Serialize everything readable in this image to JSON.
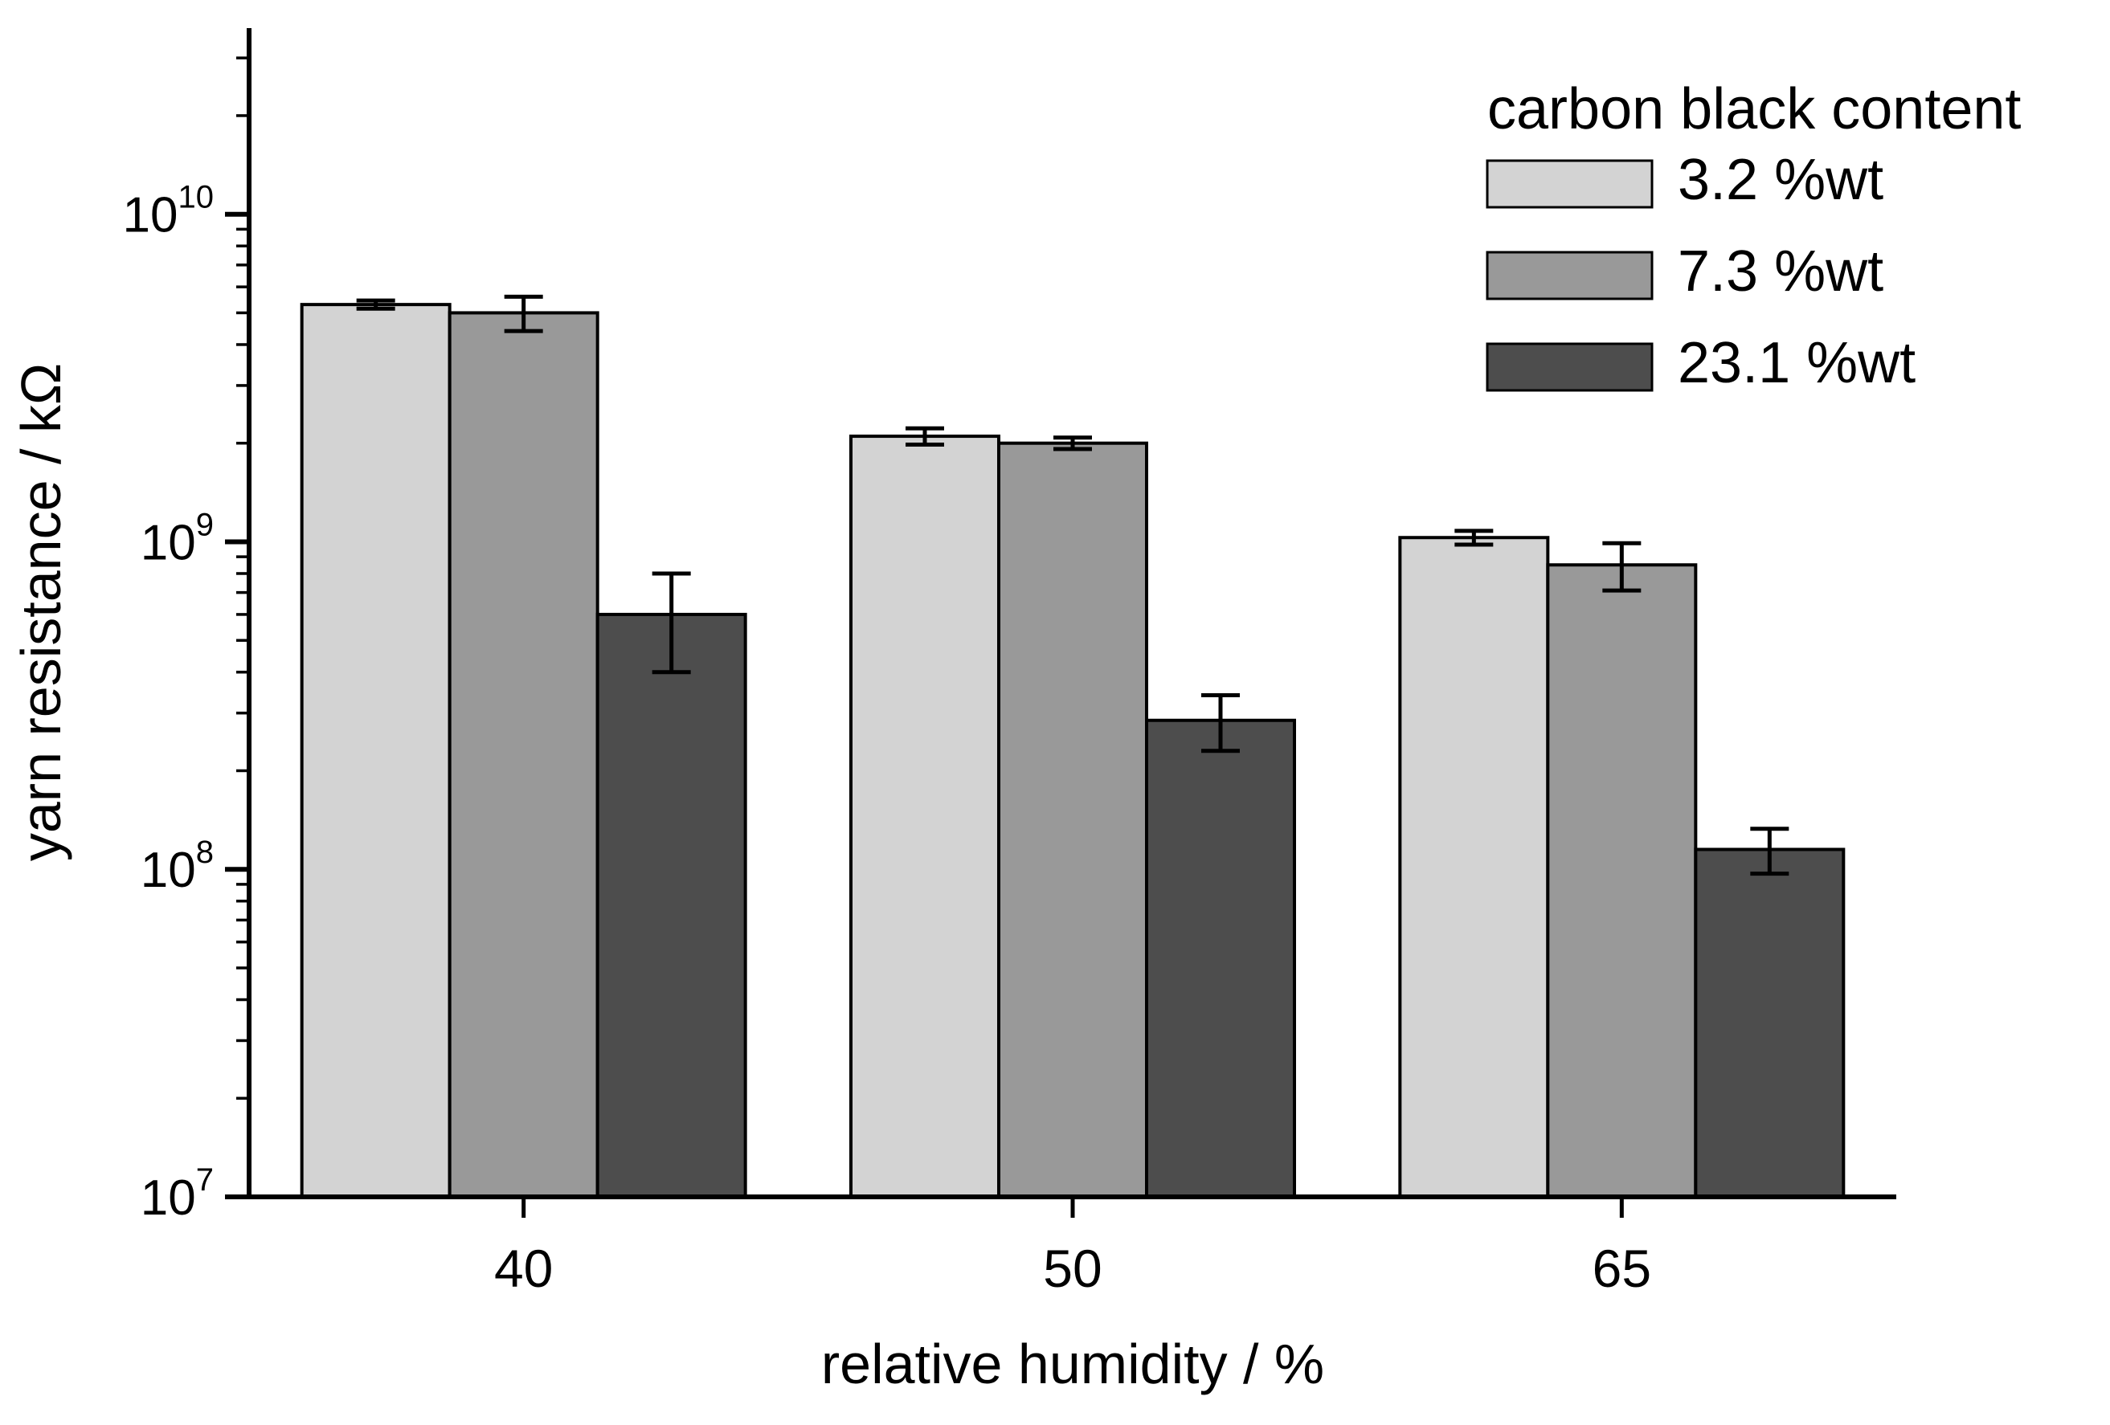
{
  "chart_data": {
    "type": "bar",
    "title": "",
    "xlabel": "relative humidity / %",
    "ylabel": "yarn resistance / kΩ",
    "yscale": "log",
    "ylim": [
      10000000.0,
      37000000000.0
    ],
    "ytick_exponents": [
      7,
      8,
      9,
      10
    ],
    "grid": false,
    "categories": [
      "40",
      "50",
      "65"
    ],
    "legend": {
      "title": "carbon black content",
      "position": "top-right"
    },
    "series": [
      {
        "name": "3.2 %wt",
        "color": "#d3d3d3",
        "values": [
          5300000000.0,
          2100000000.0,
          1030000000.0
        ],
        "errors": [
          150000000.0,
          120000000.0,
          50000000.0
        ]
      },
      {
        "name": "7.3 %wt",
        "color": "#999999",
        "values": [
          5000000000.0,
          2000000000.0,
          850000000.0
        ],
        "errors": [
          600000000.0,
          80000000.0,
          140000000.0
        ]
      },
      {
        "name": "23.1 %wt",
        "color": "#4d4d4d",
        "values": [
          600000000.0,
          285000000.0,
          115000000.0
        ],
        "errors": [
          200000000.0,
          55000000.0,
          18000000.0
        ]
      }
    ]
  }
}
